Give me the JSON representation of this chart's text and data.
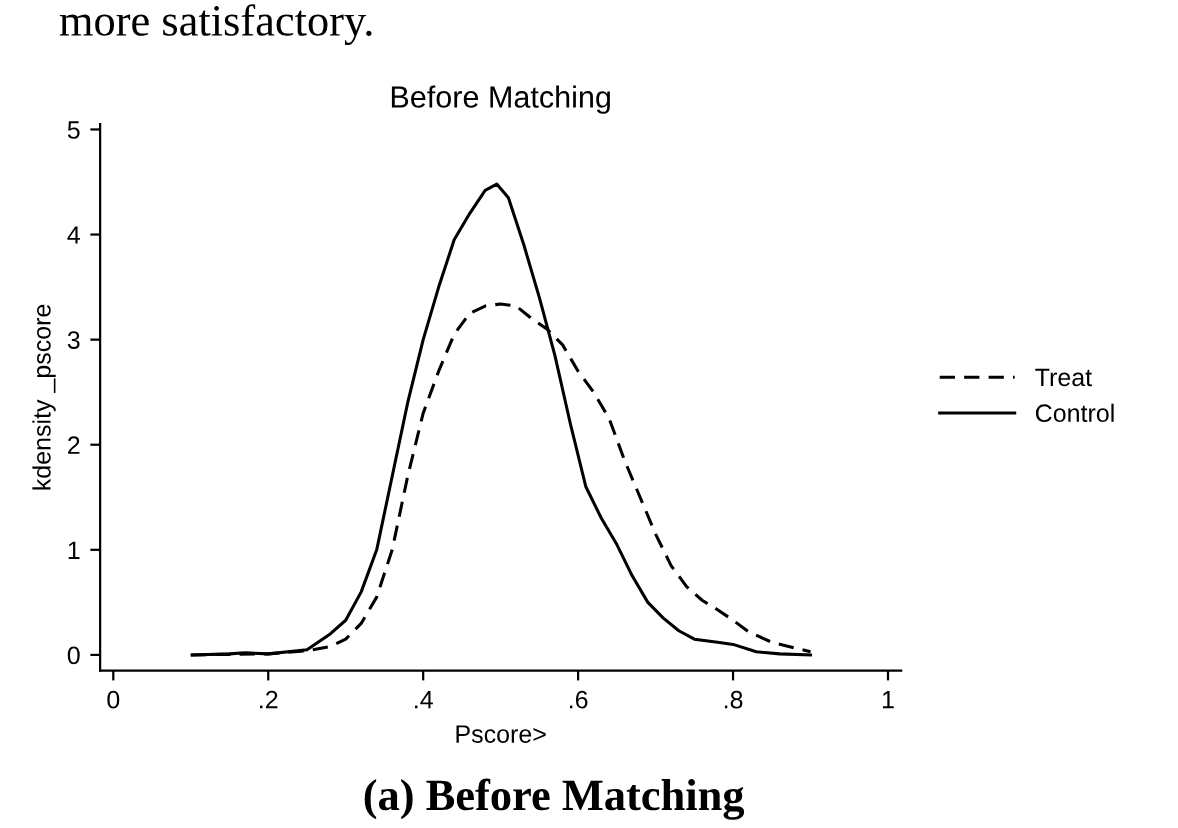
{
  "chart_data": {
    "type": "line",
    "title": "Before Matching",
    "xlabel": "Pscore>",
    "ylabel": "kdensity _pscore",
    "annotations": [
      "more satisfactory.",
      "(a) Before Matching"
    ],
    "xlim": [
      -0.017,
      1.017
    ],
    "ylim": [
      -0.15,
      5.05
    ],
    "xticks": [
      0,
      {
        "value": 0.2,
        "label": ".2"
      },
      {
        "value": 0.4,
        "label": ".4"
      },
      {
        "value": 0.6,
        "label": ".6"
      },
      {
        "value": 0.8,
        "label": ".8"
      },
      1
    ],
    "yticks": [
      0,
      1,
      2,
      3,
      4,
      5
    ],
    "grid": false,
    "legend": "right",
    "marker": "none",
    "series": [
      {
        "name": "Treat",
        "color": "#000000",
        "line_style": "dashed",
        "x": [
          0.1,
          0.2,
          0.25,
          0.28,
          0.3,
          0.32,
          0.34,
          0.36,
          0.38,
          0.4,
          0.42,
          0.44,
          0.46,
          0.48,
          0.5,
          0.52,
          0.54,
          0.56,
          0.58,
          0.6,
          0.62,
          0.64,
          0.66,
          0.68,
          0.7,
          0.72,
          0.74,
          0.76,
          0.78,
          0.8,
          0.82,
          0.85,
          0.9
        ],
        "values": [
          0,
          0.01,
          0.04,
          0.08,
          0.15,
          0.3,
          0.55,
          1.0,
          1.7,
          2.3,
          2.7,
          3.05,
          3.25,
          3.32,
          3.34,
          3.32,
          3.2,
          3.1,
          2.95,
          2.7,
          2.5,
          2.25,
          1.85,
          1.5,
          1.15,
          0.85,
          0.65,
          0.52,
          0.43,
          0.33,
          0.22,
          0.12,
          0.03
        ]
      },
      {
        "name": "Control",
        "color": "#000000",
        "line_style": "solid",
        "x": [
          0.102,
          0.15,
          0.17,
          0.2,
          0.25,
          0.28,
          0.3,
          0.32,
          0.34,
          0.36,
          0.38,
          0.4,
          0.42,
          0.44,
          0.46,
          0.48,
          0.495,
          0.51,
          0.53,
          0.55,
          0.57,
          0.59,
          0.61,
          0.63,
          0.65,
          0.67,
          0.69,
          0.71,
          0.73,
          0.75,
          0.78,
          0.8,
          0.83,
          0.86,
          0.9
        ],
        "values": [
          0,
          0.01,
          0.02,
          0.01,
          0.05,
          0.2,
          0.33,
          0.6,
          1.0,
          1.7,
          2.4,
          3.0,
          3.5,
          3.95,
          4.2,
          4.42,
          4.48,
          4.35,
          3.9,
          3.4,
          2.85,
          2.2,
          1.6,
          1.3,
          1.05,
          0.75,
          0.5,
          0.35,
          0.23,
          0.15,
          0.12,
          0.1,
          0.03,
          0.01,
          0
        ]
      }
    ]
  }
}
